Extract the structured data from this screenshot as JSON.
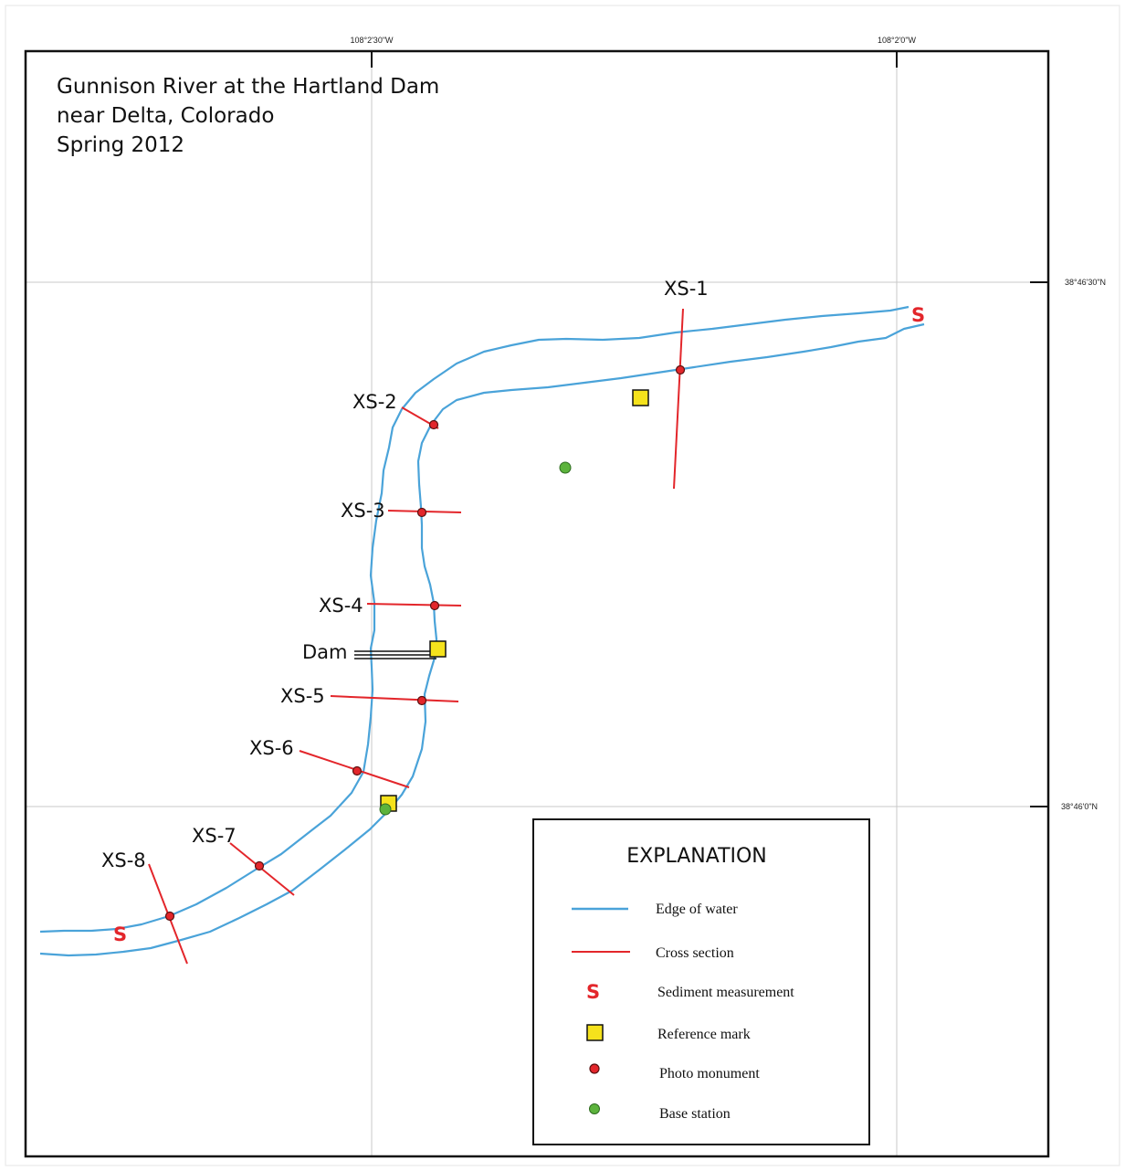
{
  "title_lines": [
    "Gunnison River at the Hartland Dam",
    "near Delta, Colorado",
    "Spring 2012"
  ],
  "graticule": {
    "lon_labels": [
      "108°2'30\"W",
      "108°2'0\"W"
    ],
    "lat_labels": [
      "38°46'30\"N",
      "38°46'0\"N"
    ]
  },
  "cross_sections": [
    "XS-1",
    "XS-2",
    "XS-3",
    "XS-4",
    "XS-5",
    "XS-6",
    "XS-7",
    "XS-8"
  ],
  "dam_label": "Dam",
  "sediment_symbol": "S",
  "legend": {
    "heading": "EXPLANATION",
    "items": [
      {
        "symbol": "water-edge-line",
        "label": "Edge of water"
      },
      {
        "symbol": "cross-section-line",
        "label": "Cross section"
      },
      {
        "symbol": "sediment-s",
        "label": "Sediment measurement"
      },
      {
        "symbol": "reference-square",
        "label": "Reference mark"
      },
      {
        "symbol": "photo-dot",
        "label": "Photo monument"
      },
      {
        "symbol": "base-dot",
        "label": "Base station"
      }
    ]
  },
  "colors": {
    "water": "#4aa3d9",
    "cross_section": "#e3262b",
    "reference_mark": "#f5e21c",
    "photo_monument": "#e3262b",
    "base_station": "#5cb33c",
    "grid": "#c8c8c8"
  }
}
